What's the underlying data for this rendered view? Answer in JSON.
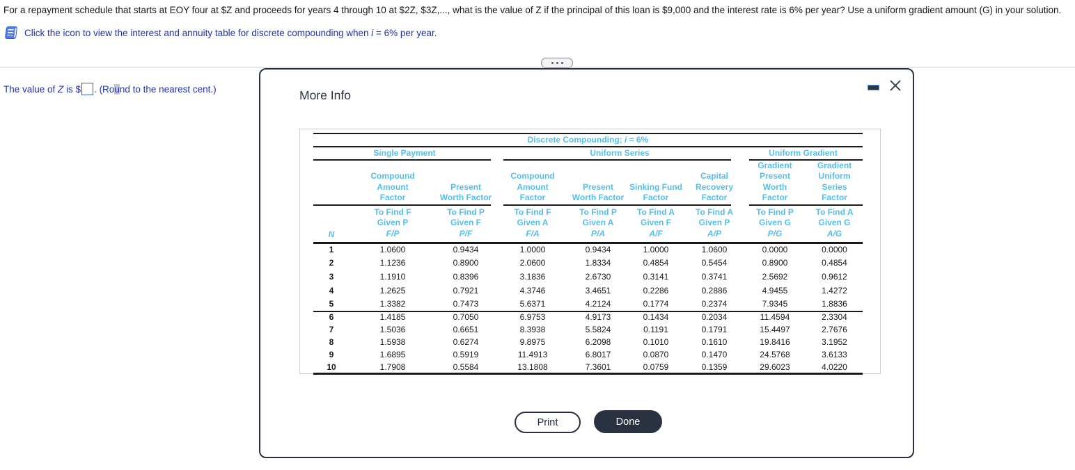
{
  "colors": {
    "navy_text": "#2231ac",
    "table_header_blue": "#55bee9",
    "dark_button": "#2a3140",
    "icon_blue": "#4d7de6"
  },
  "question": {
    "text": "For a repayment schedule that starts at EOY four at $Z and proceeds for years 4 through 10 at $2Z, $3Z,..., what is the value of Z if the principal of this loan is $9,000 and the interest rate is 6% per year? Use a uniform gradient amount (G) in your solution.",
    "hint_pre": "Click the icon to view the interest and annuity table for discrete compounding when ",
    "hint_i": "i",
    "hint_post": " = 6% per year.",
    "icon": "book-table-icon"
  },
  "answer": {
    "prefix_1": "The value of ",
    "z": "Z",
    "prefix_2": " is $",
    "input_value": "",
    "suffix_pre_cursor": ". (Ro",
    "cursor_char": "u",
    "suffix_post_cursor": "nd to the nearest cent.)"
  },
  "dialog": {
    "title": "More Info",
    "drag_handle": "drag-handle",
    "minimize": "minimize-button",
    "close": "close-button",
    "print_label": "Print",
    "done_label": "Done"
  },
  "table": {
    "title_pre": "Discrete Compounding; ",
    "title_i": "i",
    "title_post": " = 6%",
    "groups": {
      "g1": "Single Payment",
      "g2": "Uniform Series",
      "g3": "Uniform Gradient"
    },
    "col_n_label": "N",
    "columns": [
      {
        "name": "Compound\nAmount\nFactor",
        "find": "To Find F",
        "given": "Given P",
        "symbol": "F/P"
      },
      {
        "name": "Present\nWorth Factor",
        "find": "To Find P",
        "given": "Given F",
        "symbol": "P/F"
      },
      {
        "name": "Compound\nAmount\nFactor",
        "find": "To Find F",
        "given": "Given A",
        "symbol": "F/A"
      },
      {
        "name": "Present\nWorth Factor",
        "find": "To Find P",
        "given": "Given A",
        "symbol": "P/A"
      },
      {
        "name": "Sinking Fund\nFactor",
        "find": "To Find A",
        "given": "Given F",
        "symbol": "A/F"
      },
      {
        "name": "Capital\nRecovery\nFactor",
        "find": "To Find A",
        "given": "Given P",
        "symbol": "A/P"
      },
      {
        "name": "Gradient\nPresent\nWorth\nFactor",
        "find": "To Find P",
        "given": "Given G",
        "symbol": "P/G"
      },
      {
        "name": "Gradient\nUniform\nSeries\nFactor",
        "find": "To Find A",
        "given": "Given G",
        "symbol": "A/G"
      }
    ],
    "rows": [
      [
        "1",
        "1.0600",
        "0.9434",
        "1.0000",
        "0.9434",
        "1.0000",
        "1.0600",
        "0.0000",
        "0.0000"
      ],
      [
        "2",
        "1.1236",
        "0.8900",
        "2.0600",
        "1.8334",
        "0.4854",
        "0.5454",
        "0.8900",
        "0.4854"
      ],
      [
        "3",
        "1.1910",
        "0.8396",
        "3.1836",
        "2.6730",
        "0.3141",
        "0.3741",
        "2.5692",
        "0.9612"
      ],
      [
        "4",
        "1.2625",
        "0.7921",
        "4.3746",
        "3.4651",
        "0.2286",
        "0.2886",
        "4.9455",
        "1.4272"
      ],
      [
        "5",
        "1.3382",
        "0.7473",
        "5.6371",
        "4.2124",
        "0.1774",
        "0.2374",
        "7.9345",
        "1.8836"
      ],
      [
        "6",
        "1.4185",
        "0.7050",
        "6.9753",
        "4.9173",
        "0.1434",
        "0.2034",
        "11.4594",
        "2.3304"
      ],
      [
        "7",
        "1.5036",
        "0.6651",
        "8.3938",
        "5.5824",
        "0.1191",
        "0.1791",
        "15.4497",
        "2.7676"
      ],
      [
        "8",
        "1.5938",
        "0.6274",
        "9.8975",
        "6.2098",
        "0.1010",
        "0.1610",
        "19.8416",
        "3.1952"
      ],
      [
        "9",
        "1.6895",
        "0.5919",
        "11.4913",
        "6.8017",
        "0.0870",
        "0.1470",
        "24.5768",
        "3.6133"
      ],
      [
        "10",
        "1.7908",
        "0.5584",
        "13.1808",
        "7.3601",
        "0.0759",
        "0.1359",
        "29.6023",
        "4.0220"
      ]
    ]
  }
}
